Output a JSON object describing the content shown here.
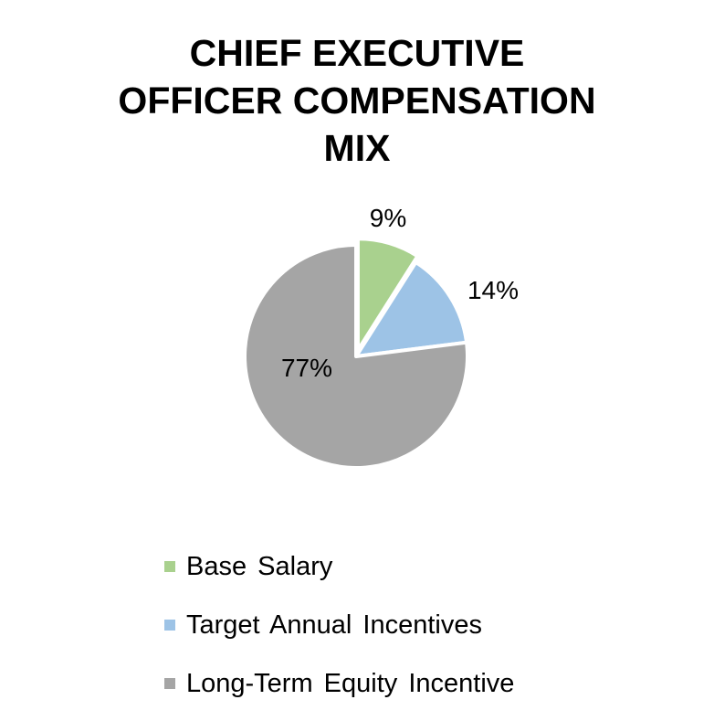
{
  "chart_data": {
    "type": "pie",
    "title": [
      "CHIEF EXECUTIVE",
      "OFFICER COMPENSATION",
      "MIX"
    ],
    "slices": [
      {
        "label": "Base Salary",
        "value": 9,
        "data_label": "9%",
        "color": "#a9d18e"
      },
      {
        "label": "Target Annual Incentives",
        "value": 14,
        "data_label": "14%",
        "color": "#9dc3e6"
      },
      {
        "label": "Long-Term Equity Incentive",
        "value": 77,
        "data_label": "77%",
        "color": "#a5a5a5"
      }
    ],
    "start_angle": "12 o'clock",
    "direction": "clockwise",
    "legend_position": "bottom"
  }
}
